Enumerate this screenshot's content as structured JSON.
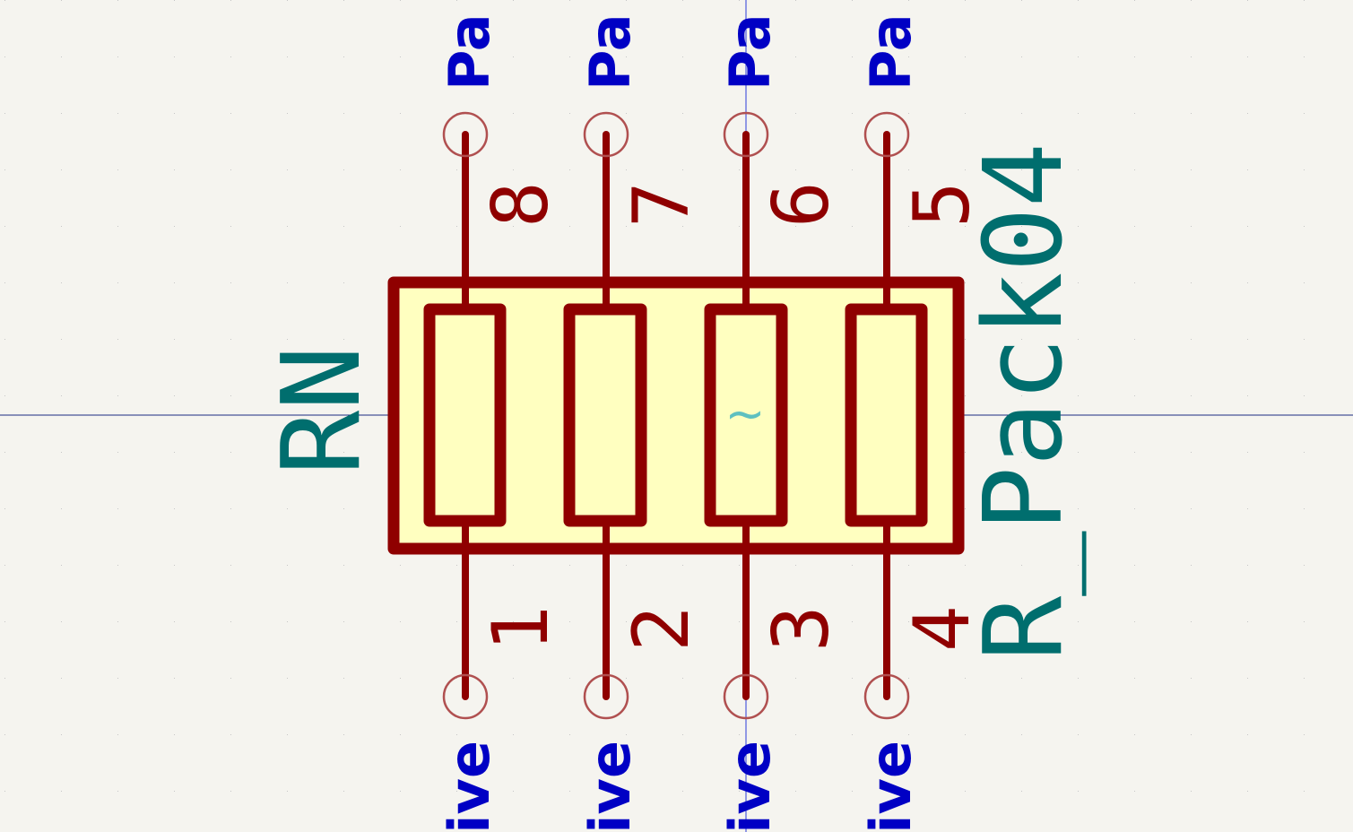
{
  "schematic": {
    "component": {
      "reference": "RN",
      "value": "R_Pack04",
      "fill_color": "#ffffc0",
      "body_color": "#8f0000",
      "field_color": "#006e6e",
      "pin_type_color": "#0000c4",
      "origin_marker": "~"
    },
    "top_pins": [
      {
        "number": "8",
        "type_label": "Pa"
      },
      {
        "number": "7",
        "type_label": "Pa"
      },
      {
        "number": "6",
        "type_label": "Pa"
      },
      {
        "number": "5",
        "type_label": "Pa"
      }
    ],
    "bottom_pins": [
      {
        "number": "1",
        "type_label": "ive"
      },
      {
        "number": "2",
        "type_label": "ive"
      },
      {
        "number": "3",
        "type_label": "ive"
      },
      {
        "number": "4",
        "type_label": "ive"
      }
    ]
  }
}
